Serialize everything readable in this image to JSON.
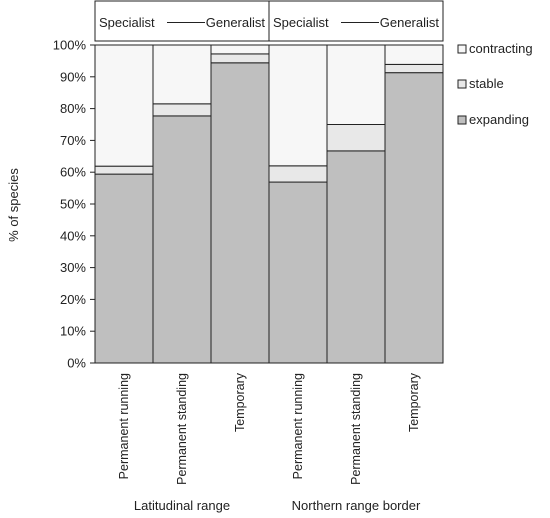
{
  "chart_data": {
    "type": "bar",
    "stacked": true,
    "ylabel": "% of species",
    "ylim": [
      0,
      100
    ],
    "yticks": [
      "0%",
      "10%",
      "20%",
      "30%",
      "40%",
      "50%",
      "60%",
      "70%",
      "80%",
      "90%",
      "100%"
    ],
    "header": {
      "left": "Specialist",
      "right": "Generalist"
    },
    "groups": [
      {
        "label": "Latitudinal range",
        "categories": [
          "Permanent running",
          "Permanent standing",
          "Temporary"
        ]
      },
      {
        "label": "Northern range border",
        "categories": [
          "Permanent running",
          "Permanent standing",
          "Temporary"
        ]
      }
    ],
    "categories": [
      "Permanent running",
      "Permanent standing",
      "Temporary",
      "Permanent running",
      "Permanent standing",
      "Temporary"
    ],
    "series": [
      {
        "name": "expanding",
        "values": [
          59.4,
          77.7,
          94.4,
          56.9,
          66.7,
          91.3
        ]
      },
      {
        "name": "stable",
        "values": [
          2.5,
          3.8,
          2.8,
          5.1,
          8.3,
          2.6
        ]
      },
      {
        "name": "contracting",
        "values": [
          38.1,
          18.5,
          2.8,
          38.0,
          25.0,
          6.1
        ]
      }
    ],
    "legend": {
      "position": "right",
      "order": [
        "contracting",
        "stable",
        "expanding"
      ]
    },
    "colors": {
      "expanding": "#bfbfbf",
      "stable": "#e8e8e8",
      "contracting": "#f7f7f7",
      "outline": "#222222"
    },
    "grid": false
  }
}
